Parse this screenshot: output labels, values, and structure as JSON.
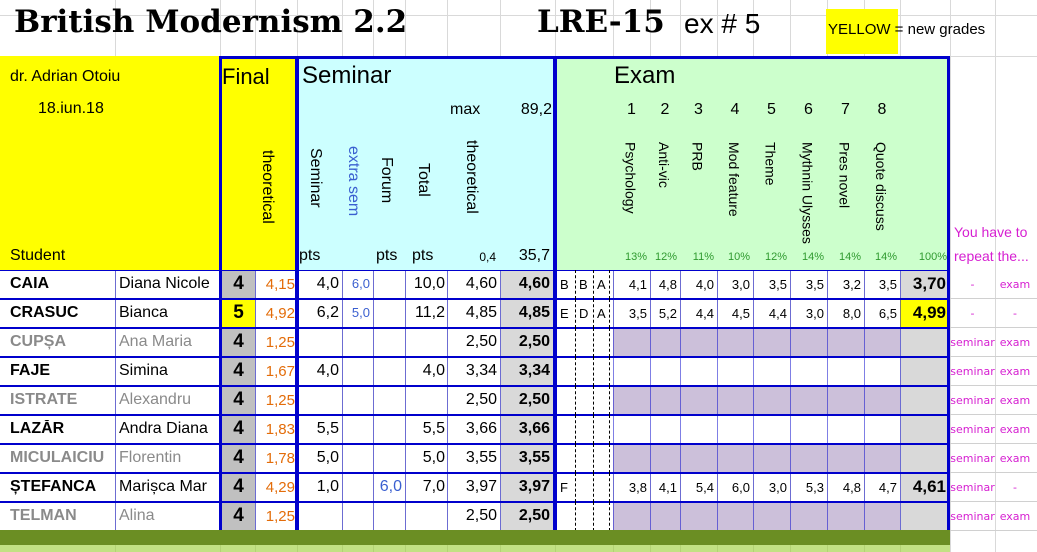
{
  "sheet": {
    "title": "British Modernism 2.2",
    "code": "LRE-15",
    "ex_label": "ex # 5",
    "legend": "YELLOW = new grades",
    "teacher": "dr. Adrian Otoiu",
    "date": "18.iun.18",
    "student_header": "Student"
  },
  "headers": {
    "final": "Final",
    "final_theoretical": "theoretical",
    "seminar": "Seminar",
    "max_label": "max",
    "max_value": "89,2",
    "col_seminar": "Seminar",
    "col_extra_sem": "extra sem",
    "col_forum": "Forum",
    "col_total": "Total",
    "col_theoretical": "theoretical",
    "pts1": "pts",
    "pts2": "pts",
    "pts3": "pts",
    "factor": "0,4",
    "factor_total": "35,7",
    "exam": "Exam",
    "exam_numbers": [
      "1",
      "2",
      "3",
      "4",
      "5",
      "6",
      "7",
      "8"
    ],
    "exam_topics": [
      "Psychology",
      "Anti-vic",
      "PRB",
      "Mod feature",
      "Theme",
      "Mythnin Ulysses",
      "Pres novel",
      "Quote discuss"
    ],
    "exam_percents": [
      "13%",
      "12%",
      "11%",
      "10%",
      "12%",
      "14%",
      "14%",
      "14%"
    ],
    "exam_total_percent": "100%",
    "repeat_note": "You have to repeat the..."
  },
  "students": [
    {
      "last": "CAIA",
      "first": "Diana Nicole",
      "final": "4",
      "final_highlight": false,
      "theo": "4,15",
      "sem": "4,0",
      "extra": "6,0",
      "forum": "",
      "total": "10,0",
      "stheo": "4,60",
      "sfinal": "4,60",
      "l1": "B",
      "l2": "B",
      "l3": "A",
      "ex": [
        "4,1",
        "4,8",
        "4,0",
        "3,0",
        "3,5",
        "3,5",
        "3,2",
        "3,5"
      ],
      "exfinal": "3,70",
      "exfinal_highlight": false,
      "rep1": "-",
      "rep2": "exam",
      "inactive": false,
      "exam_filled": true
    },
    {
      "last": "CRASUC",
      "first": "Bianca",
      "final": "5",
      "final_highlight": true,
      "theo": "4,92",
      "sem": "6,2",
      "extra": "5,0",
      "forum": "",
      "total": "11,2",
      "stheo": "4,85",
      "sfinal": "4,85",
      "l1": "E",
      "l2": "D",
      "l3": "A",
      "ex": [
        "3,5",
        "5,2",
        "4,4",
        "4,5",
        "4,4",
        "3,0",
        "8,0",
        "6,5"
      ],
      "exfinal": "4,99",
      "exfinal_highlight": true,
      "rep1": "-",
      "rep2": "-",
      "inactive": false,
      "exam_filled": true
    },
    {
      "last": "CUPȘA",
      "first": "Ana Maria",
      "final": "4",
      "final_highlight": false,
      "theo": "1,25",
      "sem": "",
      "extra": "",
      "forum": "",
      "total": "",
      "stheo": "2,50",
      "sfinal": "2,50",
      "l1": "",
      "l2": "",
      "l3": "",
      "ex": [
        "",
        "",
        "",
        "",
        "",
        "",
        "",
        ""
      ],
      "exfinal": "",
      "exfinal_highlight": false,
      "rep1": "seminar",
      "rep2": "exam",
      "inactive": true,
      "exam_filled": false
    },
    {
      "last": "FAJE",
      "first": "Simina",
      "final": "4",
      "final_highlight": false,
      "theo": "1,67",
      "sem": "4,0",
      "extra": "",
      "forum": "",
      "total": "4,0",
      "stheo": "3,34",
      "sfinal": "3,34",
      "l1": "",
      "l2": "",
      "l3": "",
      "ex": [
        "",
        "",
        "",
        "",
        "",
        "",
        "",
        ""
      ],
      "exfinal": "",
      "exfinal_highlight": false,
      "rep1": "seminar",
      "rep2": "exam",
      "inactive": false,
      "exam_filled": false
    },
    {
      "last": "ISTRATE",
      "first": "Alexandru",
      "final": "4",
      "final_highlight": false,
      "theo": "1,25",
      "sem": "",
      "extra": "",
      "forum": "",
      "total": "",
      "stheo": "2,50",
      "sfinal": "2,50",
      "l1": "",
      "l2": "",
      "l3": "",
      "ex": [
        "",
        "",
        "",
        "",
        "",
        "",
        "",
        ""
      ],
      "exfinal": "",
      "exfinal_highlight": false,
      "rep1": "seminar",
      "rep2": "exam",
      "inactive": true,
      "exam_filled": false
    },
    {
      "last": "LAZĂR",
      "first": "Andra Diana",
      "final": "4",
      "final_highlight": false,
      "theo": "1,83",
      "sem": "5,5",
      "extra": "",
      "forum": "",
      "total": "5,5",
      "stheo": "3,66",
      "sfinal": "3,66",
      "l1": "",
      "l2": "",
      "l3": "",
      "ex": [
        "",
        "",
        "",
        "",
        "",
        "",
        "",
        ""
      ],
      "exfinal": "",
      "exfinal_highlight": false,
      "rep1": "seminar",
      "rep2": "exam",
      "inactive": false,
      "exam_filled": false
    },
    {
      "last": "MICULAICIU",
      "first": "Florentin",
      "final": "4",
      "final_highlight": false,
      "theo": "1,78",
      "sem": "5,0",
      "extra": "",
      "forum": "",
      "total": "5,0",
      "stheo": "3,55",
      "sfinal": "3,55",
      "l1": "",
      "l2": "",
      "l3": "",
      "ex": [
        "",
        "",
        "",
        "",
        "",
        "",
        "",
        ""
      ],
      "exfinal": "",
      "exfinal_highlight": false,
      "rep1": "seminar",
      "rep2": "exam",
      "inactive": true,
      "exam_filled": false
    },
    {
      "last": "ȘTEFANCA",
      "first": "Marișca Mar",
      "final": "4",
      "final_highlight": false,
      "theo": "4,29",
      "sem": "1,0",
      "extra": "",
      "forum": "6,0",
      "total": "7,0",
      "stheo": "3,97",
      "sfinal": "3,97",
      "l1": "F",
      "l2": "",
      "l3": "",
      "ex": [
        "3,8",
        "4,1",
        "5,4",
        "6,0",
        "3,0",
        "5,3",
        "4,8",
        "4,7"
      ],
      "exfinal": "4,61",
      "exfinal_highlight": false,
      "rep1": "seminar",
      "rep2": "-",
      "inactive": false,
      "exam_filled": true
    },
    {
      "last": "TELMAN",
      "first": "Alina",
      "final": "4",
      "final_highlight": false,
      "theo": "1,25",
      "sem": "",
      "extra": "",
      "forum": "",
      "total": "",
      "stheo": "2,50",
      "sfinal": "2,50",
      "l1": "",
      "l2": "",
      "l3": "",
      "ex": [
        "",
        "",
        "",
        "",
        "",
        "",
        "",
        ""
      ],
      "exfinal": "",
      "exfinal_highlight": false,
      "rep1": "seminar",
      "rep2": "exam",
      "inactive": true,
      "exam_filled": false
    }
  ],
  "colors": {
    "yellow": "#ffff00",
    "seminar_bg": "#ccffff",
    "exam_bg": "#ccffcc",
    "exam_empty": "#ccc0da",
    "border_blue": "#0000cc",
    "footer_green": "#6b8e23"
  }
}
